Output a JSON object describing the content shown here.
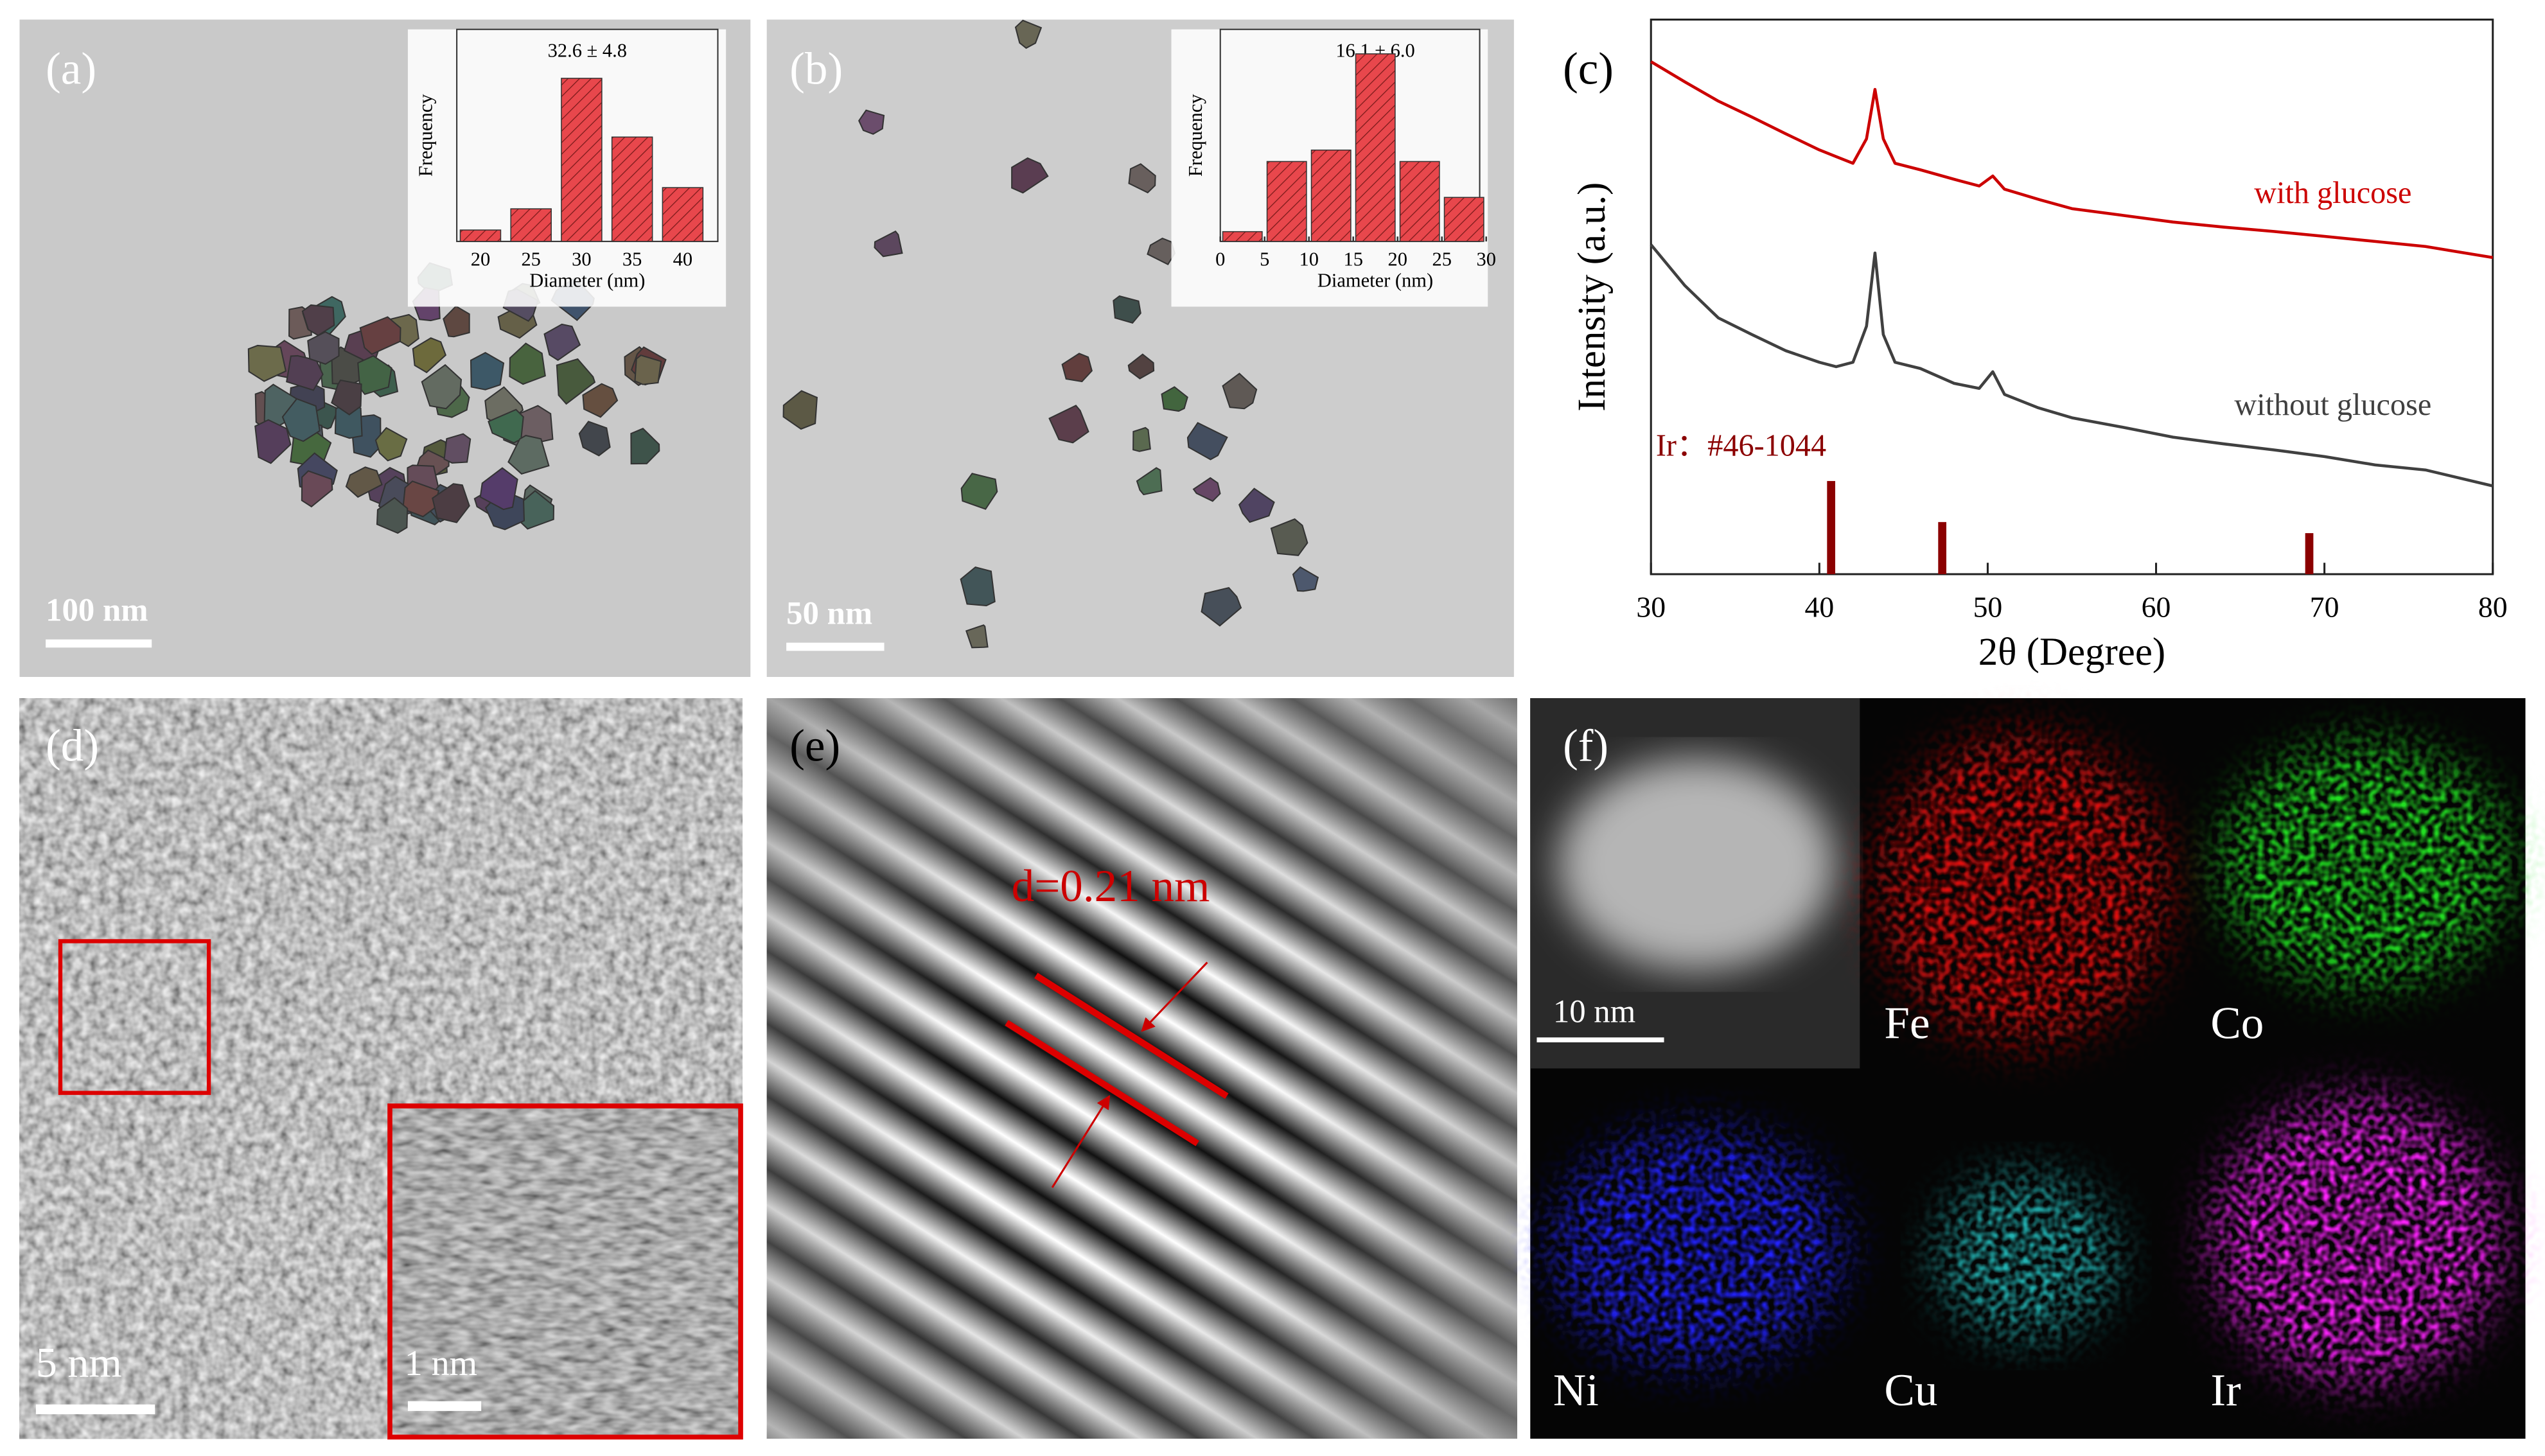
{
  "panels": {
    "a": {
      "label": "(a)",
      "scale_bar": "100 nm"
    },
    "b": {
      "label": "(b)",
      "scale_bar": "50 nm"
    },
    "c": {
      "label": "(c)"
    },
    "d": {
      "label": "(d)",
      "scale_bar": "5 nm",
      "inset_scale_bar": "1 nm"
    },
    "e": {
      "label": "(e)",
      "annotation": "d=0.21 nm"
    },
    "f": {
      "label": "(f)",
      "scale_bar": "10 nm",
      "maps": [
        "Fe",
        "Co",
        "Ni",
        "Cu",
        "Ir"
      ]
    }
  },
  "chart_data": [
    {
      "type": "bar",
      "title": "32.6 ± 4.8",
      "x_label": "Diameter (nm)",
      "y_label": "Frequency",
      "categories": [
        "20",
        "25",
        "30",
        "35",
        "40"
      ],
      "values": [
        7,
        20,
        100,
        64,
        33
      ],
      "ylim": [
        0,
        130
      ],
      "color": "#e8474c"
    },
    {
      "type": "histogram",
      "title": "16.1 ± 6.0",
      "x_label": "Diameter (nm)",
      "y_label": "Frequency",
      "bins": [
        0,
        5,
        10,
        15,
        20,
        25,
        30
      ],
      "values": [
        6,
        49,
        56,
        115,
        49,
        27
      ],
      "xlim": [
        0,
        30
      ],
      "xticks": [
        0,
        5,
        10,
        15,
        20,
        25,
        30
      ],
      "ylim": [
        0,
        130
      ],
      "color": "#e8474c"
    },
    {
      "type": "line",
      "x_label": "2θ (Degree)",
      "y_label": "Intensity (a.u.)",
      "x": [
        30,
        32,
        34,
        36,
        38,
        40,
        41,
        42,
        42.8,
        43.3,
        43.8,
        44.5,
        46,
        48,
        49.5,
        50.3,
        51,
        53,
        55,
        58,
        61,
        64,
        67,
        70,
        73,
        76,
        80
      ],
      "series": [
        {
          "name": "with glucose",
          "color": "#cc0000",
          "values": [
            92.4,
            88.8,
            85.3,
            82.4,
            79.4,
            76.5,
            75.3,
            74.1,
            78.5,
            87.4,
            78.5,
            74.1,
            72.9,
            71.2,
            70.0,
            71.8,
            69.4,
            67.6,
            65.9,
            64.7,
            63.5,
            62.6,
            61.8,
            60.9,
            60.0,
            59.1,
            57.1
          ]
        },
        {
          "name": "without glucose",
          "color": "#404040",
          "values": [
            59.4,
            52.1,
            46.2,
            43.2,
            40.3,
            38.2,
            37.4,
            38.2,
            44.7,
            57.9,
            43.2,
            38.2,
            37.1,
            34.4,
            33.5,
            36.5,
            32.4,
            30.0,
            28.2,
            26.5,
            24.7,
            23.5,
            22.4,
            21.2,
            19.7,
            18.8,
            15.9
          ]
        }
      ],
      "reference": {
        "name": "Ir：#46-1044",
        "color": "#8b0000",
        "x": [
          40.7,
          47.3,
          69.1
        ],
        "values": [
          16.8,
          9.4,
          7.4
        ]
      },
      "xlim": [
        30,
        80
      ],
      "xticks": [
        30,
        40,
        50,
        60,
        70,
        80
      ],
      "ylim": [
        0,
        100
      ]
    }
  ]
}
